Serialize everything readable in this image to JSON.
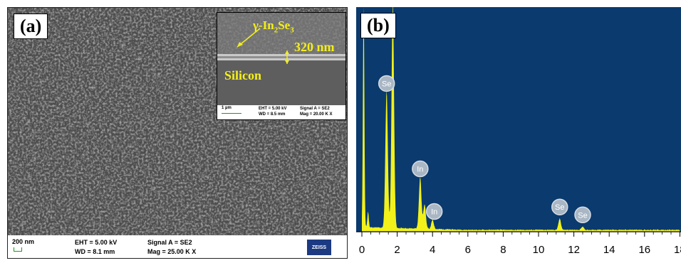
{
  "panel_a": {
    "label": "(a)",
    "inset": {
      "phase_label": "γ-In",
      "phase_sub1": "2",
      "phase_mid": "Se",
      "phase_sub2": "3",
      "thickness": "320 nm",
      "substrate": "Silicon",
      "scale": "1 µm",
      "eht": "EHT =  5.00 kV",
      "wd": "WD =  8.5 mm",
      "signal": "Signal A = SE2",
      "mag": "Mag =  20.00 K X"
    },
    "info": {
      "scale": "200 nm",
      "eht": "EHT =  5.00 kV",
      "wd": "WD =  8.1 mm",
      "signal": "Signal A = SE2",
      "mag": "Mag =  25.00 K X",
      "logo": "ZEISS"
    }
  },
  "panel_b": {
    "label": "(b)",
    "background": "#0a3a6e",
    "trace_color": "#f2f21a"
  },
  "chart_data": {
    "type": "line",
    "xlim": [
      0,
      18
    ],
    "ylim": [
      0,
      100
    ],
    "x_ticks": [
      "0",
      "2",
      "4",
      "6",
      "8",
      "10",
      "12",
      "14",
      "16",
      "18"
    ],
    "peaks": [
      {
        "x": 0.1,
        "y": 100,
        "label": ""
      },
      {
        "x": 0.35,
        "y": 7,
        "label": ""
      },
      {
        "x": 1.4,
        "y": 61,
        "label": "Se"
      },
      {
        "x": 1.75,
        "y": 100,
        "label": ""
      },
      {
        "x": 3.3,
        "y": 23,
        "label": "In"
      },
      {
        "x": 3.55,
        "y": 11,
        "label": ""
      },
      {
        "x": 4.0,
        "y": 4,
        "label": "In"
      },
      {
        "x": 11.2,
        "y": 5,
        "label": "Se"
      },
      {
        "x": 12.5,
        "y": 1.5,
        "label": "Se"
      }
    ],
    "label_positions": [
      {
        "label": "Se",
        "x": 1.4,
        "y": 66
      },
      {
        "label": "In",
        "x": 3.3,
        "y": 28
      },
      {
        "label": "In",
        "x": 4.1,
        "y": 9
      },
      {
        "label": "Se",
        "x": 11.2,
        "y": 11
      },
      {
        "label": "Se",
        "x": 12.5,
        "y": 7.5
      }
    ]
  }
}
